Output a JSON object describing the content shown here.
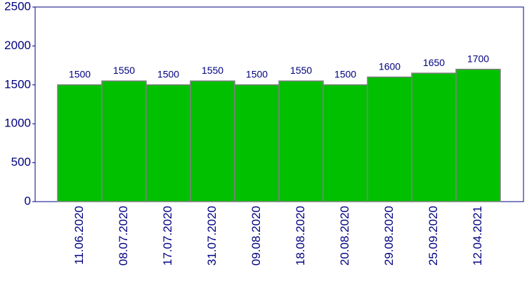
{
  "chart_data": {
    "type": "bar",
    "categories": [
      "11.06.2020",
      "08.07.2020",
      "17.07.2020",
      "31.07.2020",
      "09.08.2020",
      "18.08.2020",
      "20.08.2020",
      "29.08.2020",
      "25.09.2020",
      "12.04.2021"
    ],
    "values": [
      1500,
      1550,
      1500,
      1550,
      1500,
      1550,
      1500,
      1600,
      1650,
      1700
    ],
    "color": "#00c000",
    "ylim": [
      0,
      2500
    ],
    "yticks": [
      0,
      500,
      1000,
      1500,
      2000,
      2500
    ],
    "grid": false
  }
}
